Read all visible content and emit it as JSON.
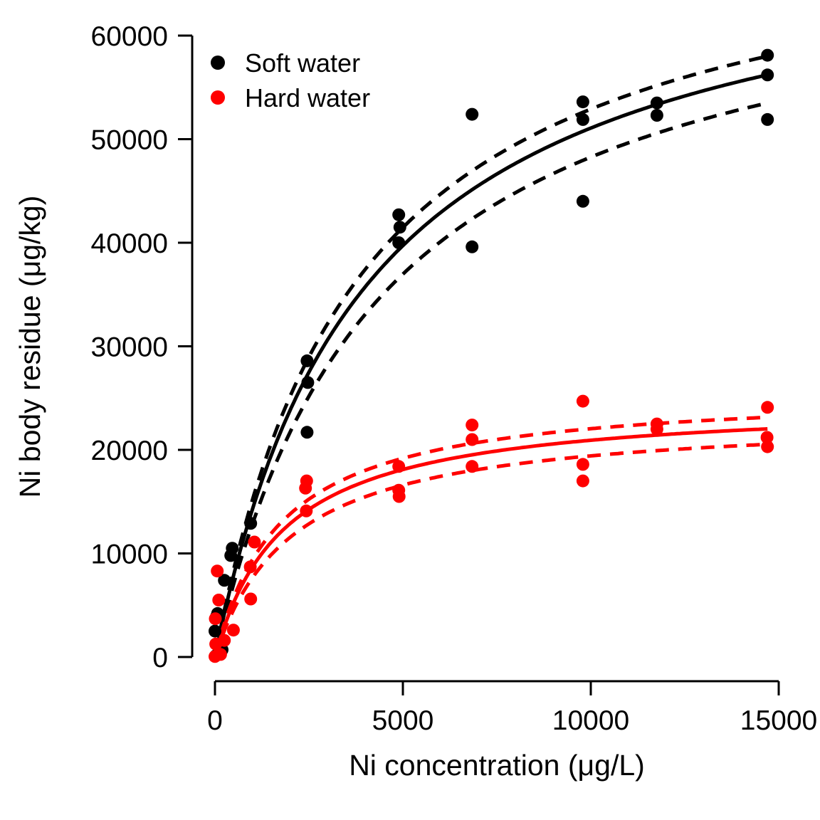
{
  "chart_data": {
    "type": "scatter",
    "title": "",
    "xlabel": "Ni concentration (μg/L)",
    "ylabel": "Ni body residue (μg/kg)",
    "xlim": [
      0,
      15000
    ],
    "ylim": [
      0,
      60000
    ],
    "x_ticks": [
      0,
      5000,
      10000,
      15000
    ],
    "x_tick_labels": [
      "0",
      "5000",
      "10000",
      "15000"
    ],
    "y_ticks": [
      0,
      10000,
      20000,
      30000,
      40000,
      50000,
      60000
    ],
    "y_tick_labels": [
      "0",
      "10000",
      "20000",
      "30000",
      "40000",
      "50000",
      "60000"
    ],
    "grid": false,
    "x_range_of_fit": [
      0,
      14700
    ],
    "legend": {
      "position": "top-left",
      "items": [
        {
          "label": "Soft water",
          "color": "#000000"
        },
        {
          "label": "Hard water",
          "color": "#ff0000"
        }
      ]
    },
    "series": [
      {
        "name": "Soft water",
        "color": "#000000",
        "marker": "filled-circle",
        "points": [
          [
            30,
            150
          ],
          [
            120,
            400
          ],
          [
            190,
            700
          ],
          [
            0,
            2500
          ],
          [
            40,
            3900
          ],
          [
            70,
            4200
          ],
          [
            250,
            7400
          ],
          [
            420,
            9800
          ],
          [
            460,
            10500
          ],
          [
            950,
            12900
          ],
          [
            2450,
            28600
          ],
          [
            2470,
            26500
          ],
          [
            2450,
            21700
          ],
          [
            4890,
            42700
          ],
          [
            4920,
            41500
          ],
          [
            4890,
            40000
          ],
          [
            6840,
            52400
          ],
          [
            6840,
            39600
          ],
          [
            9790,
            53600
          ],
          [
            9790,
            51900
          ],
          [
            9790,
            44000
          ],
          [
            11760,
            53500
          ],
          [
            11760,
            52300
          ],
          [
            14700,
            58100
          ],
          [
            14700,
            56200
          ],
          [
            14700,
            51900
          ]
        ],
        "fit": {
          "model": "michaelis_menten",
          "vmax": 71500,
          "km": 4000,
          "style": "solid"
        },
        "ci_upper": {
          "model": "michaelis_menten",
          "vmax": 73000,
          "km": 3800,
          "style": "dashed"
        },
        "ci_lower": {
          "model": "michaelis_menten",
          "vmax": 69500,
          "km": 4400,
          "style": "dashed"
        }
      },
      {
        "name": "Hard water",
        "color": "#ff0000",
        "marker": "filled-circle",
        "points": [
          [
            0,
            50
          ],
          [
            150,
            250
          ],
          [
            20,
            1250
          ],
          [
            250,
            1600
          ],
          [
            10,
            3700
          ],
          [
            100,
            5500
          ],
          [
            60,
            8300
          ],
          [
            490,
            2600
          ],
          [
            950,
            5600
          ],
          [
            940,
            8700
          ],
          [
            1050,
            11100
          ],
          [
            2430,
            14100
          ],
          [
            2410,
            16300
          ],
          [
            2440,
            17000
          ],
          [
            4890,
            18400
          ],
          [
            4890,
            16100
          ],
          [
            4900,
            15500
          ],
          [
            6840,
            22400
          ],
          [
            6840,
            21000
          ],
          [
            6840,
            18400
          ],
          [
            9790,
            24700
          ],
          [
            9790,
            18600
          ],
          [
            9790,
            17000
          ],
          [
            11760,
            22500
          ],
          [
            11760,
            22000
          ],
          [
            14700,
            24100
          ],
          [
            14690,
            21200
          ],
          [
            14700,
            20300
          ]
        ],
        "fit": {
          "model": "michaelis_menten",
          "vmax": 24800,
          "km": 1850,
          "style": "solid"
        },
        "ci_upper": {
          "model": "michaelis_menten",
          "vmax": 25900,
          "km": 1750,
          "style": "dashed"
        },
        "ci_lower": {
          "model": "michaelis_menten",
          "vmax": 23400,
          "km": 2050,
          "style": "dashed"
        }
      }
    ]
  }
}
